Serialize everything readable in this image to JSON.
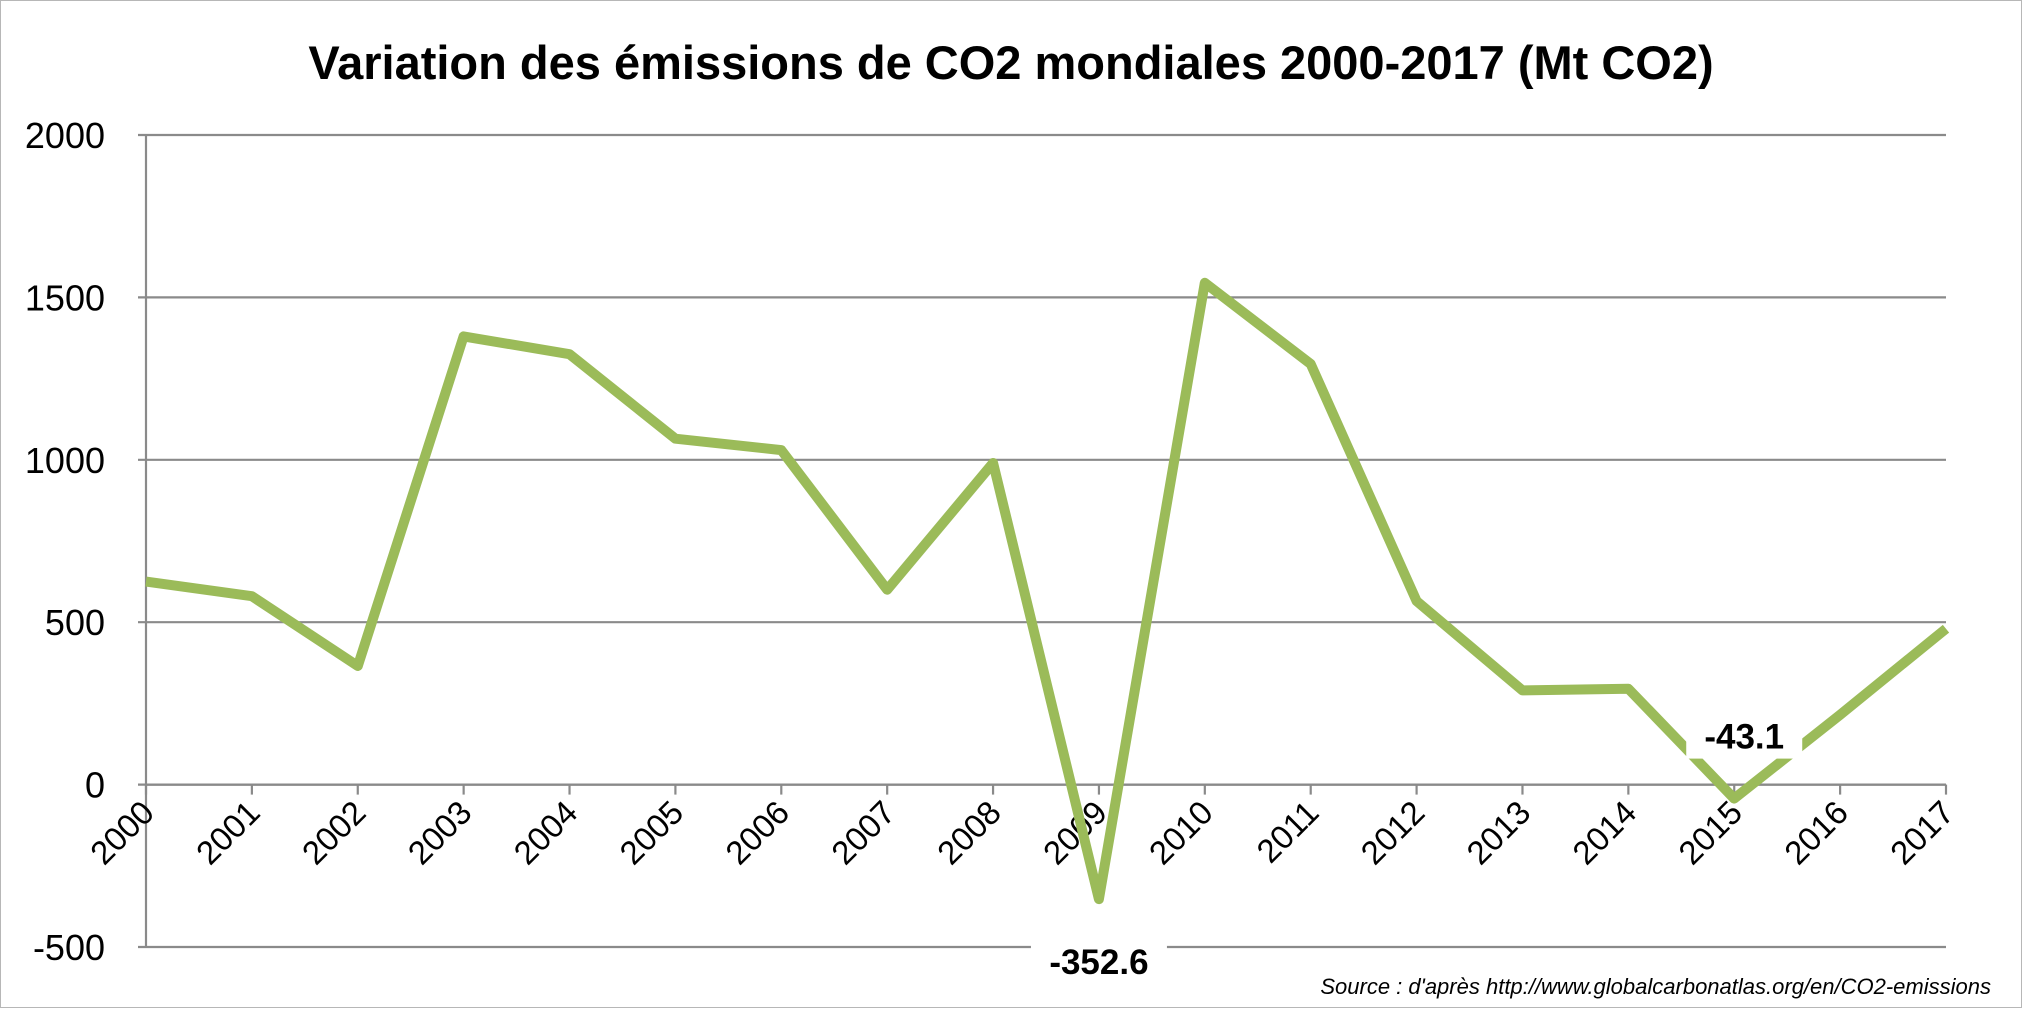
{
  "chart_data": {
    "type": "line",
    "title": "Variation des émissions de CO2 mondiales 2000-2017 (Mt CO2)",
    "xlabel": "",
    "ylabel": "",
    "categories": [
      "2000",
      "2001",
      "2002",
      "2003",
      "2004",
      "2005",
      "2006",
      "2007",
      "2008",
      "2009",
      "2010",
      "2011",
      "2012",
      "2013",
      "2014",
      "2015",
      "2016",
      "2017"
    ],
    "series": [
      {
        "name": "",
        "values": [
          625,
          580,
          365,
          1380,
          1325,
          1065,
          1030,
          600,
          990,
          -352.6,
          1545,
          1295,
          565,
          290,
          295,
          -43.1,
          215,
          480
        ],
        "color": "#9bbb59"
      }
    ],
    "ylim": [
      -500,
      2000
    ],
    "yticks": [
      "2000",
      "1500",
      "1000",
      "500",
      "0",
      "-500"
    ],
    "ytick_values": [
      2000,
      1500,
      1000,
      500,
      0,
      -500
    ],
    "grid": true,
    "legend": "none",
    "annotations": [
      {
        "category": "2009",
        "text": "-352.6"
      },
      {
        "category": "2015",
        "text": "-43.1"
      }
    ],
    "source": "Source : d'après http://www.globalcarbonatlas.org/en/CO2-emissions"
  }
}
